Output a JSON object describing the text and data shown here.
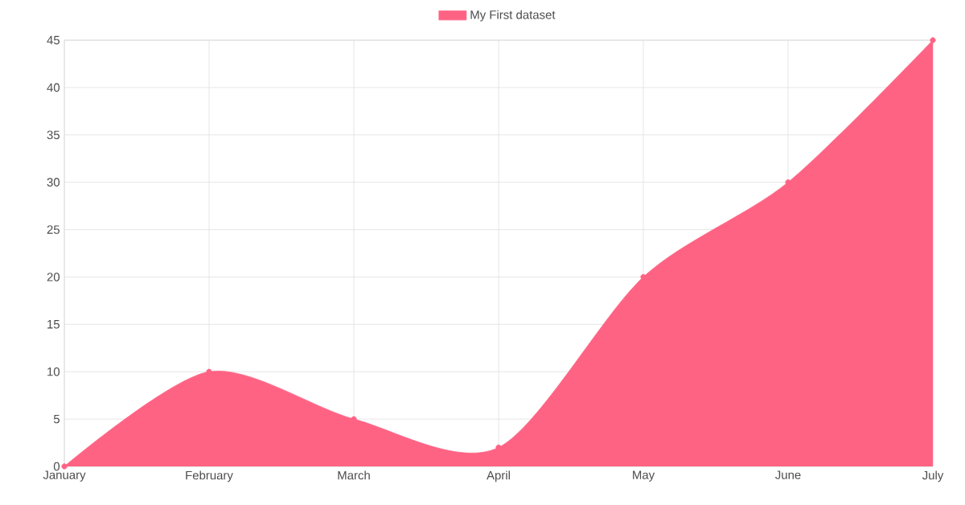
{
  "chart_data": {
    "type": "area",
    "categories": [
      "January",
      "February",
      "March",
      "April",
      "May",
      "June",
      "July"
    ],
    "series": [
      {
        "name": "My First dataset",
        "color": "#ff6384",
        "values": [
          0,
          10,
          5,
          2,
          20,
          30,
          45
        ]
      }
    ],
    "ylim": [
      0,
      45
    ],
    "yticks": [
      0,
      5,
      10,
      15,
      20,
      25,
      30,
      35,
      40,
      45
    ],
    "grid": true,
    "legend": "top",
    "marker": "circle"
  }
}
